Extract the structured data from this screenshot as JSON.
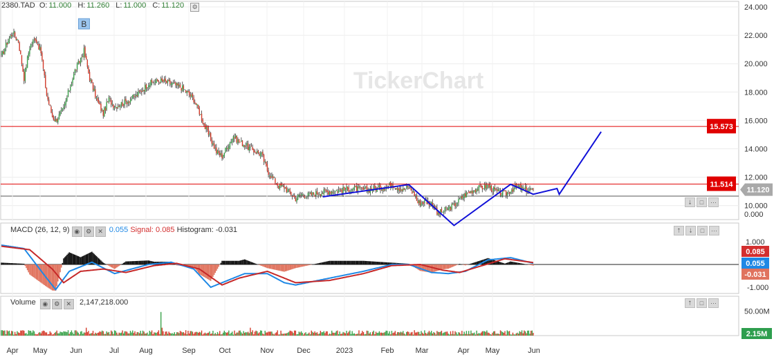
{
  "header": {
    "symbol": "2380.TAD",
    "open_label": "O:",
    "open": "11.000",
    "high_label": "H:",
    "high": "11.260",
    "low_label": "L:",
    "low": "11.000",
    "close_label": "C:",
    "close": "11.120"
  },
  "watermark": "TickerChart",
  "chart_data": [
    {
      "type": "candlestick",
      "ylim": [
        8.5,
        24.2
      ],
      "y_ticks": [
        "24.000",
        "22.000",
        "20.000",
        "18.000",
        "16.000",
        "14.000",
        "12.000",
        "10.000"
      ],
      "zero_tick": "0.000",
      "x_ticks": [
        "Apr",
        "May",
        "Jun",
        "Jul",
        "Aug",
        "Sep",
        "Oct",
        "Nov",
        "Dec",
        "2023",
        "Feb",
        "Mar",
        "Apr",
        "May",
        "Jun"
      ],
      "anchors": [
        [
          0,
          20.5
        ],
        [
          5,
          21.5
        ],
        [
          10,
          22.2
        ],
        [
          15,
          21.6
        ],
        [
          20,
          19.0
        ],
        [
          25,
          21.2
        ],
        [
          30,
          21.8
        ],
        [
          35,
          20.8
        ],
        [
          40,
          17.8
        ],
        [
          45,
          16.3
        ],
        [
          48,
          16.0
        ],
        [
          55,
          16.8
        ],
        [
          60,
          18.2
        ],
        [
          65,
          19.5
        ],
        [
          70,
          20.3
        ],
        [
          73,
          20.9
        ],
        [
          78,
          19.0
        ],
        [
          85,
          17.3
        ],
        [
          90,
          16.5
        ],
        [
          95,
          17.5
        ],
        [
          100,
          17.0
        ],
        [
          110,
          17.3
        ],
        [
          120,
          17.8
        ],
        [
          130,
          18.6
        ],
        [
          140,
          18.8
        ],
        [
          150,
          18.6
        ],
        [
          160,
          18.3
        ],
        [
          170,
          17.5
        ],
        [
          175,
          16.6
        ],
        [
          180,
          15.5
        ],
        [
          185,
          14.7
        ],
        [
          190,
          13.8
        ],
        [
          195,
          13.5
        ],
        [
          200,
          14.2
        ],
        [
          205,
          14.9
        ],
        [
          210,
          14.5
        ],
        [
          215,
          14.3
        ],
        [
          220,
          14.0
        ],
        [
          225,
          13.8
        ],
        [
          230,
          13.6
        ],
        [
          235,
          12.5
        ],
        [
          240,
          11.9
        ],
        [
          245,
          11.4
        ],
        [
          250,
          11.3
        ],
        [
          255,
          10.9
        ],
        [
          260,
          10.5
        ],
        [
          265,
          10.8
        ],
        [
          270,
          10.7
        ],
        [
          280,
          10.9
        ],
        [
          290,
          11.0
        ],
        [
          300,
          11.1
        ],
        [
          310,
          11.2
        ],
        [
          320,
          11.1
        ],
        [
          330,
          11.2
        ],
        [
          340,
          11.3
        ],
        [
          345,
          11.5
        ],
        [
          350,
          11.3
        ],
        [
          355,
          11.1
        ],
        [
          360,
          11.3
        ],
        [
          365,
          10.8
        ],
        [
          368,
          10.2
        ],
        [
          375,
          10.3
        ],
        [
          382,
          10.1
        ],
        [
          385,
          9.4
        ],
        [
          390,
          9.6
        ],
        [
          395,
          9.8
        ],
        [
          400,
          10.0
        ],
        [
          405,
          10.4
        ],
        [
          410,
          10.8
        ],
        [
          415,
          11.0
        ],
        [
          420,
          11.2
        ],
        [
          425,
          11.3
        ],
        [
          430,
          11.4
        ],
        [
          435,
          11.1
        ],
        [
          440,
          10.9
        ],
        [
          445,
          10.8
        ],
        [
          450,
          11.1
        ],
        [
          455,
          11.3
        ],
        [
          460,
          11.2
        ],
        [
          465,
          11.1
        ],
        [
          470,
          11.12
        ]
      ],
      "n_bars": 471,
      "marker_B": {
        "bar": 73,
        "price": 22.2,
        "label": "B"
      },
      "h_lines": [
        {
          "value": 15.573,
          "label": "15.573",
          "color": "#e00000"
        },
        {
          "value": 11.514,
          "label": "11.514",
          "color": "#e00000"
        }
      ],
      "last_price": {
        "value": 11.12,
        "label": "11.120"
      },
      "pattern": {
        "color": "#1010d8",
        "points": [
          [
            284,
            10.62
          ],
          [
            360,
            11.48
          ],
          [
            400,
            8.6
          ],
          [
            450,
            11.5
          ],
          [
            470,
            10.8
          ],
          [
            491,
            11.2
          ],
          [
            493,
            10.8
          ],
          [
            530,
            15.2
          ]
        ]
      }
    },
    {
      "type": "macd",
      "title": "MACD",
      "params": "(26, 12, 9)",
      "value_label": "0.055",
      "signal_label": "Signal:",
      "signal": "0.085",
      "histogram_label": "Histogram:",
      "histogram": "-0.031",
      "ylim": [
        -1.15,
        1.15
      ],
      "y_ticks": [
        "1.000",
        "-1.000"
      ],
      "badges": [
        {
          "value": "0.085",
          "color": "#d32f2f"
        },
        {
          "value": "0.055",
          "color": "#1e88e5"
        },
        {
          "value": "-0.031",
          "color": "#e0735e"
        }
      ],
      "macd_anchors": [
        [
          0,
          0.85
        ],
        [
          20,
          0.7
        ],
        [
          40,
          -0.6
        ],
        [
          48,
          -1.1
        ],
        [
          60,
          -0.3
        ],
        [
          80,
          0.1
        ],
        [
          100,
          -0.4
        ],
        [
          130,
          0.0
        ],
        [
          150,
          0.1
        ],
        [
          170,
          -0.2
        ],
        [
          185,
          -1.0
        ],
        [
          200,
          -0.7
        ],
        [
          215,
          -0.4
        ],
        [
          235,
          -0.4
        ],
        [
          250,
          -0.8
        ],
        [
          260,
          -0.9
        ],
        [
          290,
          -0.6
        ],
        [
          320,
          -0.3
        ],
        [
          345,
          0.0
        ],
        [
          360,
          0.0
        ],
        [
          380,
          -0.35
        ],
        [
          395,
          -0.4
        ],
        [
          410,
          -0.3
        ],
        [
          430,
          0.2
        ],
        [
          450,
          0.3
        ],
        [
          470,
          0.055
        ]
      ],
      "signal_anchors": [
        [
          0,
          0.8
        ],
        [
          25,
          0.65
        ],
        [
          45,
          -0.2
        ],
        [
          55,
          -0.8
        ],
        [
          70,
          -0.3
        ],
        [
          90,
          -0.2
        ],
        [
          110,
          -0.35
        ],
        [
          135,
          -0.05
        ],
        [
          155,
          0.05
        ],
        [
          175,
          -0.2
        ],
        [
          195,
          -0.9
        ],
        [
          210,
          -0.6
        ],
        [
          235,
          -0.3
        ],
        [
          260,
          -0.8
        ],
        [
          290,
          -0.7
        ],
        [
          320,
          -0.4
        ],
        [
          345,
          -0.05
        ],
        [
          370,
          0.0
        ],
        [
          390,
          -0.25
        ],
        [
          405,
          -0.35
        ],
        [
          425,
          -0.05
        ],
        [
          445,
          0.25
        ],
        [
          470,
          0.085
        ]
      ]
    },
    {
      "type": "volume",
      "title": "Volume",
      "value": "2,147,218.000",
      "ylim": [
        0,
        80000000
      ],
      "y_tick": "50.00M",
      "badge": "2.15M"
    }
  ]
}
